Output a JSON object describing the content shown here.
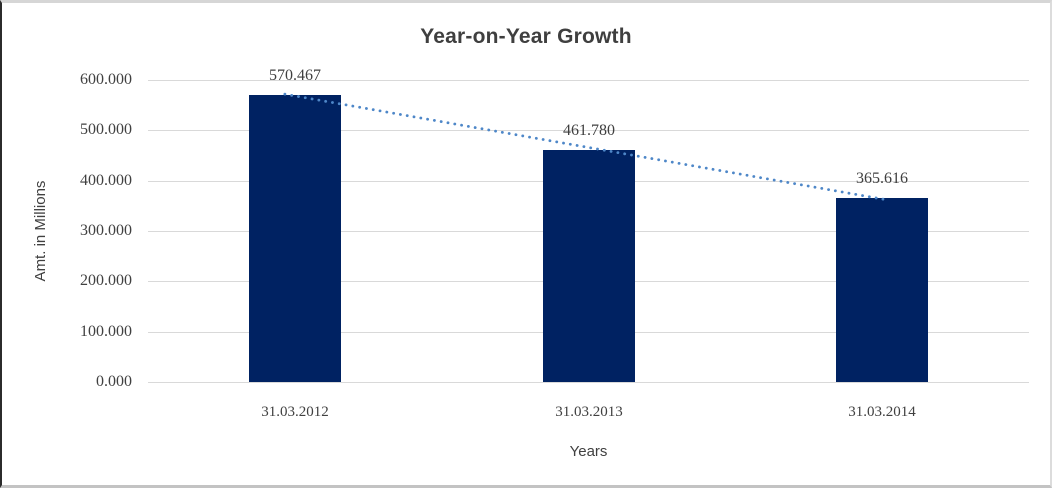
{
  "colors": {
    "bar": "#002262",
    "trendline": "#4e87c8",
    "gridline": "#d9d9d9",
    "text": "#404040"
  },
  "chart_data": {
    "type": "bar",
    "title": "Year-on-Year Growth",
    "xlabel": "Years",
    "ylabel": "Amt. in Millions",
    "categories": [
      "31.03.2012",
      "31.03.2013",
      "31.03.2014"
    ],
    "values": [
      570.467,
      461.78,
      365.616
    ],
    "data_labels": [
      "570.467",
      "461.780",
      "365.616"
    ],
    "yticks": [
      "600.000",
      "500.000",
      "400.000",
      "300.000",
      "200.000",
      "100.000",
      "0.000"
    ],
    "ylim": [
      0,
      600
    ],
    "grid": true,
    "legend": "none",
    "trendline": {
      "type": "linear",
      "style": "dotted",
      "color": "#4e87c8"
    }
  }
}
